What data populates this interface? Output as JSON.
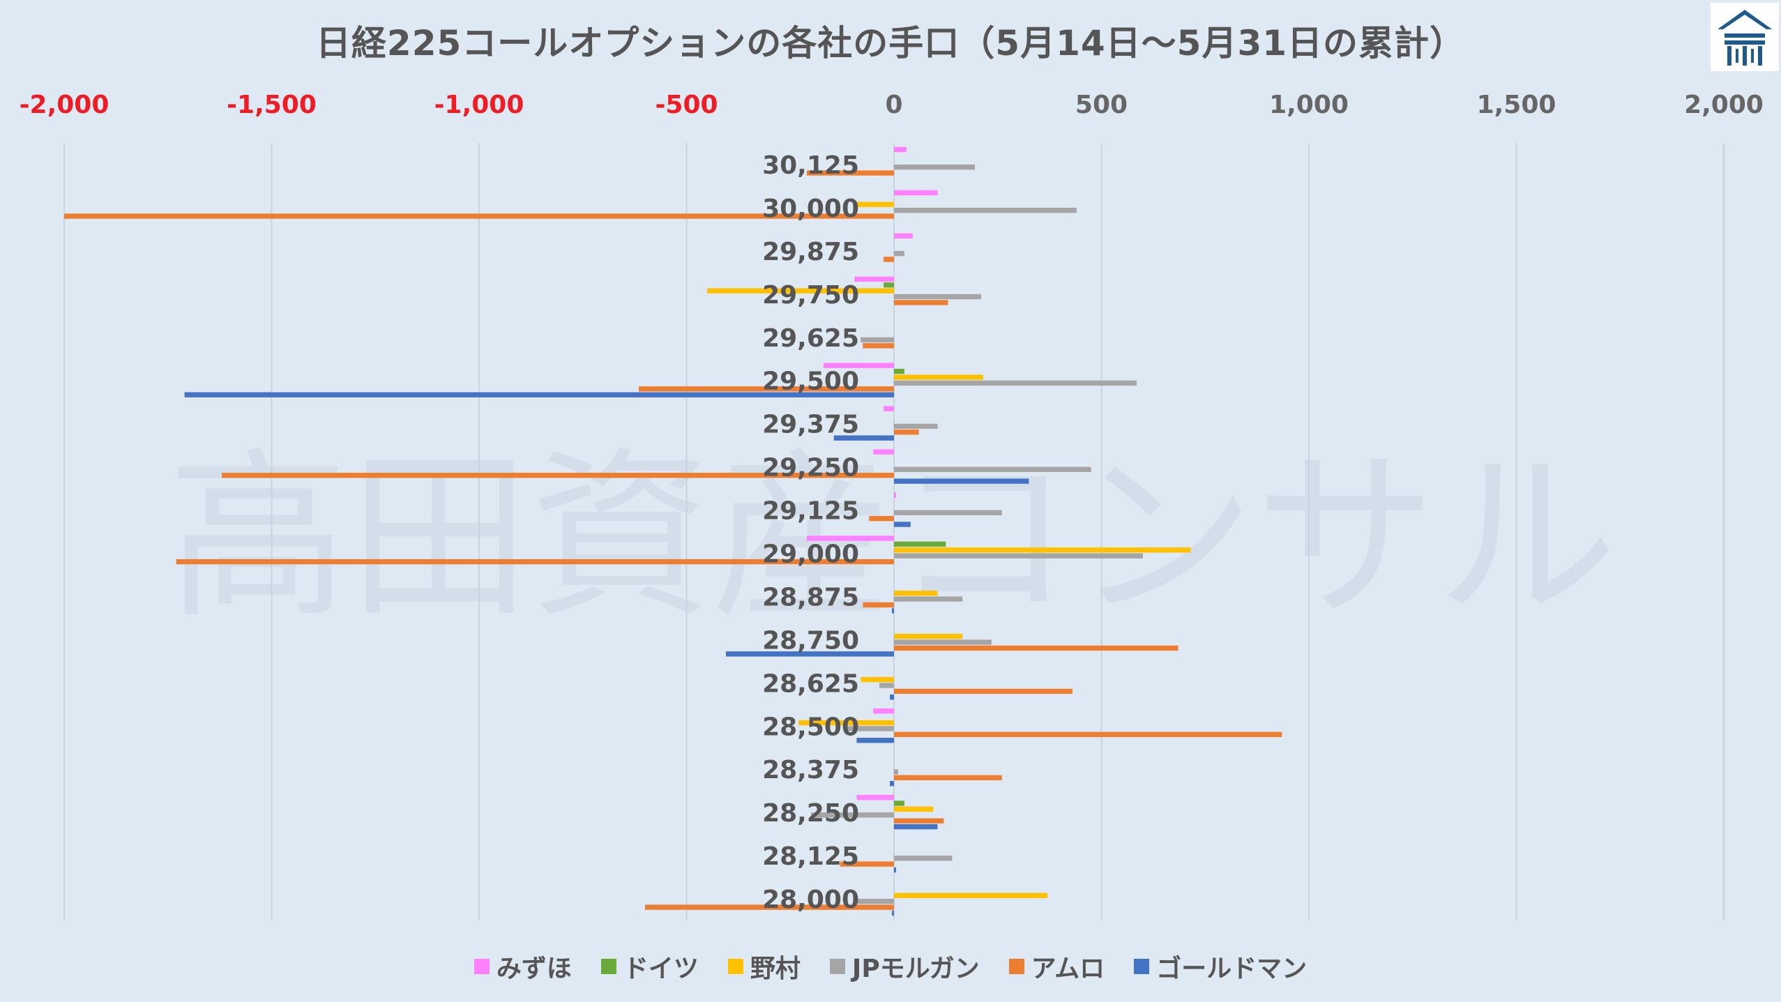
{
  "chart_data": {
    "type": "bar",
    "orientation": "horizontal",
    "title": "日経225コールオプションの各社の手口（5月14日～5月31日の累計）",
    "watermark": "高田資産コンサル",
    "xlim": [
      -2000,
      2000
    ],
    "x_ticks": [
      "-2,000",
      "-1,500",
      "-1,000",
      "-500",
      "0",
      "500",
      "1,000",
      "1,500",
      "2,000"
    ],
    "x_tick_values": [
      -2000,
      -1500,
      -1000,
      -500,
      0,
      500,
      1000,
      1500,
      2000
    ],
    "negative_tick_color": "#ee1c25",
    "positive_tick_color": "#666666",
    "grid": true,
    "legend_position": "bottom",
    "categories": [
      "30,125",
      "30,000",
      "29,875",
      "29,750",
      "29,625",
      "29,500",
      "29,375",
      "29,250",
      "29,125",
      "29,000",
      "28,875",
      "28,750",
      "28,625",
      "28,500",
      "28,375",
      "28,250",
      "28,125",
      "28,000"
    ],
    "series": [
      {
        "name": "みずほ",
        "color": "#ff80ff",
        "values": [
          30,
          105,
          45,
          -95,
          0,
          -170,
          -25,
          -50,
          5,
          -210,
          0,
          0,
          0,
          -50,
          0,
          -90,
          0,
          0
        ]
      },
      {
        "name": "ドイツ",
        "color": "#6aaa3a",
        "values": [
          0,
          0,
          0,
          -25,
          0,
          25,
          0,
          0,
          0,
          125,
          0,
          0,
          0,
          0,
          0,
          25,
          0,
          0
        ]
      },
      {
        "name": "野村",
        "color": "#ffc000",
        "values": [
          0,
          -90,
          0,
          -450,
          0,
          215,
          0,
          0,
          0,
          715,
          105,
          165,
          -80,
          -230,
          0,
          95,
          0,
          370
        ]
      },
      {
        "name": "JPモルガン",
        "color": "#a5a5a5",
        "values": [
          195,
          440,
          25,
          210,
          -80,
          585,
          105,
          475,
          260,
          600,
          165,
          235,
          -35,
          -120,
          10,
          -200,
          140,
          -95
        ]
      },
      {
        "name": "アムロ",
        "color": "#ed7d31",
        "values": [
          -210,
          -2000,
          -25,
          130,
          -75,
          -615,
          60,
          -1620,
          -60,
          -1730,
          -75,
          685,
          430,
          935,
          260,
          120,
          -130,
          -600
        ]
      },
      {
        "name": "ゴールドマン",
        "color": "#4472c4",
        "values": [
          0,
          0,
          0,
          0,
          0,
          -1710,
          -145,
          325,
          40,
          0,
          -5,
          -405,
          -10,
          -90,
          -10,
          105,
          5,
          -5
        ]
      }
    ]
  }
}
